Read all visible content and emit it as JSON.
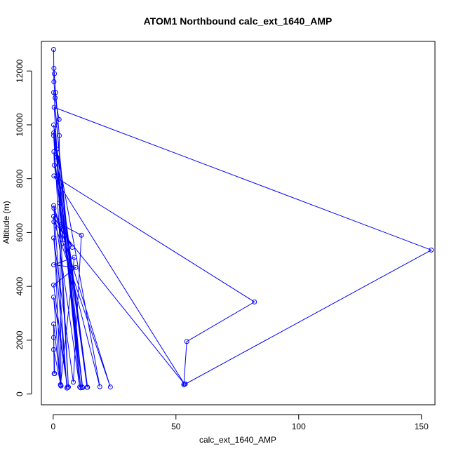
{
  "chart_data": {
    "type": "scatter",
    "title": "ATOM1 Northbound calc_ext_1640_AMP",
    "xlabel": "calc_ext_1640_AMP",
    "ylabel": "Altitude (m)",
    "xlim": [
      -4.8,
      155.5
    ],
    "ylim": [
      -400,
      13100
    ],
    "xticks": [
      0,
      50,
      100,
      150
    ],
    "yticks": [
      0,
      2000,
      4000,
      6000,
      8000,
      10000,
      12000
    ],
    "color": "#0000ff",
    "grid": false,
    "series": [
      {
        "points": [
          [
            0.2,
            12800
          ],
          [
            0.3,
            11600
          ],
          [
            0.8,
            11000
          ],
          [
            2.4,
            10200
          ],
          [
            0.2,
            9700
          ],
          [
            12.0,
            240
          ],
          [
            0.3,
            9000
          ],
          [
            0.5,
            8500
          ],
          [
            2.6,
            7100
          ],
          [
            4.0,
            5600
          ],
          [
            0.4,
            10650
          ],
          [
            154.0,
            5350
          ],
          [
            53.8,
            370
          ],
          [
            53.2,
            350
          ],
          [
            54.4,
            1950
          ],
          [
            82.0,
            3420
          ],
          [
            0.3,
            8100
          ],
          [
            53.4,
            380
          ],
          [
            0.3,
            6400
          ],
          [
            23.3,
            260
          ],
          [
            0.2,
            7000
          ],
          [
            19.0,
            270
          ],
          [
            1.5,
            9100
          ],
          [
            13.8,
            250
          ],
          [
            2.0,
            8100
          ],
          [
            11.8,
            260
          ],
          [
            0.2,
            11200
          ],
          [
            11.2,
            230
          ],
          [
            0.2,
            10000
          ],
          [
            14.0,
            250
          ],
          [
            0.2,
            9600
          ],
          [
            6.2,
            260
          ],
          [
            1.5,
            8800
          ],
          [
            10.8,
            260
          ],
          [
            0.3,
            6900
          ],
          [
            5.6,
            220
          ],
          [
            0.2,
            5800
          ],
          [
            8.2,
            440
          ],
          [
            11.5,
            5900
          ],
          [
            3.2,
            6300
          ],
          [
            7.8,
            5450
          ],
          [
            0.2,
            6600
          ],
          [
            3.0,
            330
          ],
          [
            8.6,
            5080
          ],
          [
            0.2,
            4800
          ],
          [
            9.2,
            4700
          ],
          [
            0.2,
            4050
          ],
          [
            5.8,
            260
          ],
          [
            0.2,
            3600
          ],
          [
            3.0,
            350
          ],
          [
            0.2,
            2600
          ],
          [
            0.4,
            760
          ],
          [
            0.2,
            2100
          ],
          [
            0.6,
            760
          ],
          [
            0.2,
            1650
          ],
          [
            3.2,
            300
          ],
          [
            2.5,
            9600
          ],
          [
            1.0,
            11200
          ],
          [
            0.3,
            12100
          ],
          [
            0.5,
            11900
          ]
        ]
      }
    ]
  }
}
